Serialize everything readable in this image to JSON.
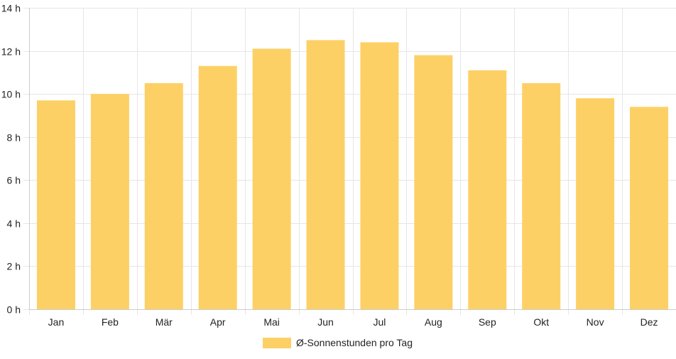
{
  "chart_data": {
    "type": "bar",
    "categories": [
      "Jan",
      "Feb",
      "Mär",
      "Apr",
      "Mai",
      "Jun",
      "Jul",
      "Aug",
      "Sep",
      "Okt",
      "Nov",
      "Dez"
    ],
    "series": [
      {
        "name": "Ø-Sonnenstunden pro Tag",
        "values": [
          9.7,
          10.0,
          10.5,
          11.3,
          12.1,
          12.5,
          12.4,
          11.8,
          11.1,
          10.5,
          9.8,
          9.4
        ]
      }
    ],
    "ylim": [
      0,
      14
    ],
    "yticks": [
      0,
      2,
      4,
      6,
      8,
      10,
      12,
      14
    ],
    "y_tick_suffix": " h",
    "grid": true,
    "legend": "bottom",
    "colors": {
      "bar_fill": "#fdd066",
      "grid": "#e6e6e6",
      "axis": "#cccccc",
      "text": "#222222"
    }
  }
}
